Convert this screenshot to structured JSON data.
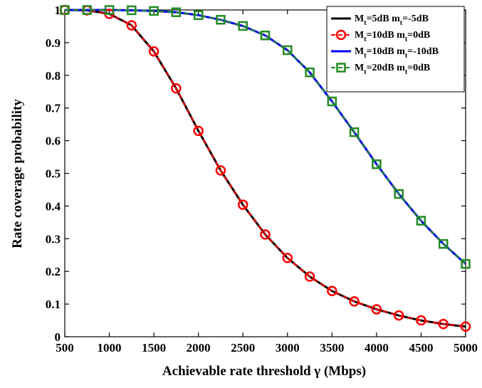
{
  "chart_data": {
    "type": "line",
    "xlabel": "Achievable rate threshold γ (Mbps)",
    "ylabel": "Rate coverage probability",
    "xlim": [
      500,
      5000
    ],
    "ylim": [
      0,
      1
    ],
    "xticks": [
      500,
      1000,
      1500,
      2000,
      2500,
      3000,
      3500,
      4000,
      4500,
      5000
    ],
    "yticks": [
      0,
      0.1,
      0.2,
      0.3,
      0.4,
      0.5,
      0.6,
      0.7,
      0.8,
      0.9,
      1
    ],
    "grid": false,
    "legend_position": "top-right",
    "x": [
      500,
      750,
      1000,
      1250,
      1500,
      1750,
      2000,
      2250,
      2500,
      2750,
      3000,
      3250,
      3500,
      3750,
      4000,
      4250,
      4500,
      4750,
      5000
    ],
    "series": [
      {
        "name": "M_t=5dB m_t=-5dB",
        "legend": {
          "M": "M",
          "Msub": "t",
          "Mval": "=5dB m",
          "msub": "t",
          "mval": "=-5dB"
        },
        "color": "#000000",
        "marker": "none",
        "linestyle": "solid",
        "values": [
          1.0,
          0.999,
          0.988,
          0.953,
          0.873,
          0.76,
          0.63,
          0.509,
          0.404,
          0.313,
          0.241,
          0.184,
          0.14,
          0.108,
          0.084,
          0.065,
          0.05,
          0.039,
          0.031
        ]
      },
      {
        "name": "M_t=10dB m_t=0dB",
        "legend": {
          "M": "M",
          "Msub": "t",
          "Mval": "=10dB m",
          "msub": "t",
          "mval": "=0dB"
        },
        "color": "#ff0000",
        "marker": "circle",
        "linestyle": "dashed",
        "values": [
          1.0,
          0.999,
          0.988,
          0.953,
          0.873,
          0.76,
          0.63,
          0.509,
          0.404,
          0.313,
          0.241,
          0.184,
          0.14,
          0.108,
          0.084,
          0.065,
          0.05,
          0.039,
          0.031
        ]
      },
      {
        "name": "M_t=10dB m_t=-10dB",
        "legend": {
          "M": "M",
          "Msub": "t",
          "Mval": "=10dB m",
          "msub": "t",
          "mval": "=-10dB"
        },
        "color": "#0000ff",
        "marker": "none",
        "linestyle": "solid",
        "values": [
          1.0,
          1.0,
          1.0,
          0.999,
          0.997,
          0.993,
          0.984,
          0.97,
          0.951,
          0.922,
          0.877,
          0.809,
          0.72,
          0.626,
          0.528,
          0.437,
          0.355,
          0.284,
          0.223
        ]
      },
      {
        "name": "M_t=20dB m_t=0dB",
        "legend": {
          "M": "M",
          "Msub": "t",
          "Mval": "=20dB m",
          "msub": "t",
          "mval": "=0dB"
        },
        "color": "#228b22",
        "marker": "square",
        "linestyle": "dashed",
        "values": [
          1.0,
          1.0,
          1.0,
          0.999,
          0.997,
          0.993,
          0.984,
          0.97,
          0.951,
          0.922,
          0.877,
          0.809,
          0.72,
          0.626,
          0.528,
          0.437,
          0.355,
          0.284,
          0.223
        ]
      }
    ]
  }
}
